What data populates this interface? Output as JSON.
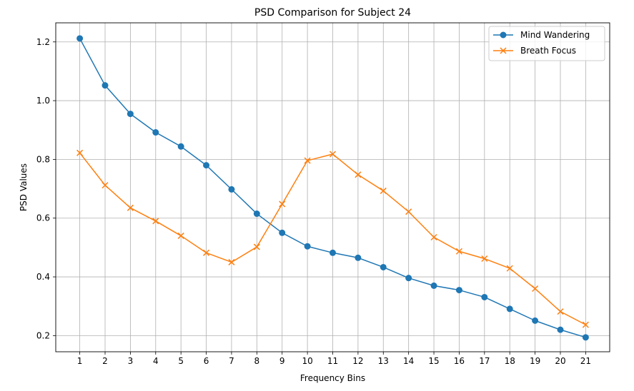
{
  "chart_data": {
    "type": "line",
    "title": "PSD Comparison for Subject 24",
    "xlabel": "Frequency Bins",
    "ylabel": "PSD Values",
    "x": [
      1,
      2,
      3,
      4,
      5,
      6,
      7,
      8,
      9,
      10,
      11,
      12,
      13,
      14,
      15,
      16,
      17,
      18,
      19,
      20,
      21
    ],
    "xlim": [
      0.05,
      21.95
    ],
    "ylim": [
      0.145,
      1.265
    ],
    "yticks": [
      0.2,
      0.4,
      0.6,
      0.8,
      1.0,
      1.2
    ],
    "ytick_labels": [
      "0.2",
      "0.4",
      "0.6",
      "0.8",
      "1.0",
      "1.2"
    ],
    "grid": true,
    "legend_position": "top-right",
    "series": [
      {
        "name": "Mind Wandering",
        "color": "#1f77b4",
        "marker": "circle",
        "values": [
          1.212,
          1.052,
          0.955,
          0.892,
          0.844,
          0.78,
          0.698,
          0.615,
          0.55,
          0.504,
          0.482,
          0.465,
          0.433,
          0.396,
          0.37,
          0.355,
          0.331,
          0.291,
          0.251,
          0.22,
          0.194
        ]
      },
      {
        "name": "Breath Focus",
        "color": "#ff7f0e",
        "marker": "x",
        "values": [
          0.822,
          0.712,
          0.635,
          0.59,
          0.54,
          0.482,
          0.45,
          0.502,
          0.648,
          0.796,
          0.818,
          0.748,
          0.693,
          0.622,
          0.535,
          0.487,
          0.462,
          0.429,
          0.36,
          0.282,
          0.237
        ]
      }
    ]
  }
}
